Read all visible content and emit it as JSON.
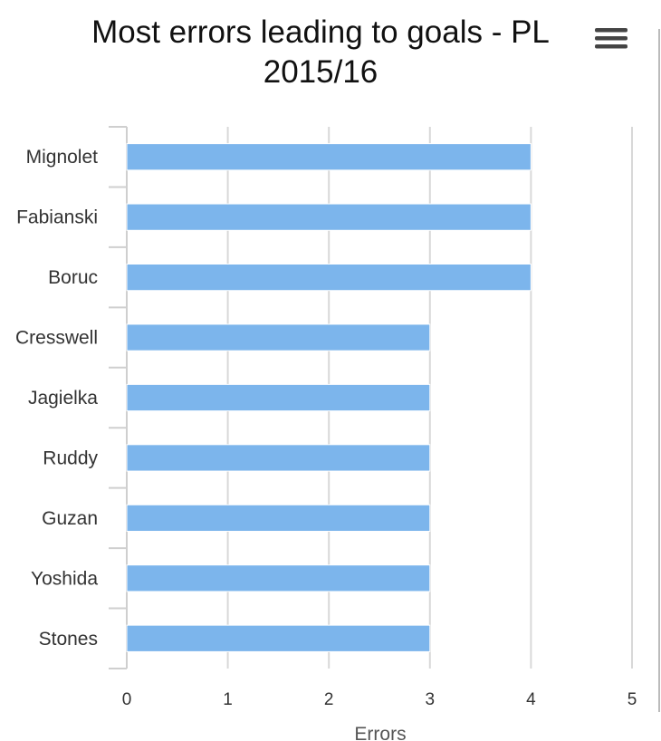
{
  "chart_data": {
    "type": "bar",
    "orientation": "horizontal",
    "title": "Most errors leading to goals - PL 2015/16",
    "title_lines": [
      "Most errors leading to goals - PL",
      "2015/16"
    ],
    "categories": [
      "Mignolet",
      "Fabianski",
      "Boruc",
      "Cresswell",
      "Jagielka",
      "Ruddy",
      "Guzan",
      "Yoshida",
      "Stones"
    ],
    "values": [
      4,
      4,
      4,
      3,
      3,
      3,
      3,
      3,
      3
    ],
    "xlabel": "Errors",
    "ylabel": "",
    "xlim": [
      0,
      5
    ],
    "ticks": [
      0,
      1,
      2,
      3,
      4,
      5
    ],
    "grid": true,
    "legend": "none",
    "bar_color": "#7cb5ec"
  },
  "menu": {
    "icon": "hamburger-menu-icon"
  }
}
